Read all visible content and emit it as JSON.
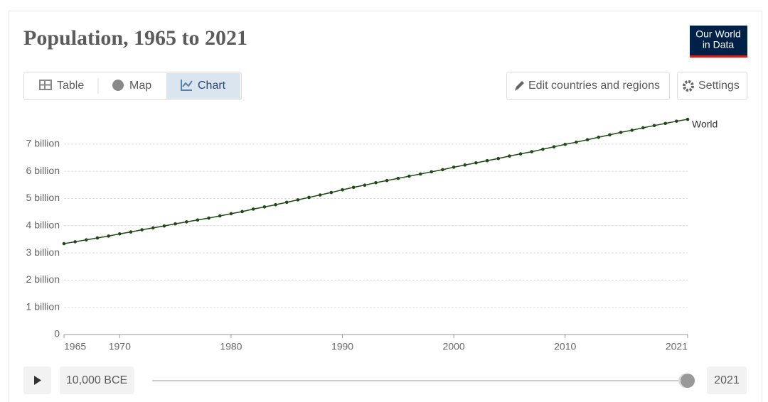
{
  "header": {
    "title": "Population, 1965 to 2021",
    "logo": [
      "Our World",
      "in Data"
    ]
  },
  "tabs": [
    "Table",
    "Map",
    "Chart"
  ],
  "buttons": {
    "edit": "Edit countries and regions",
    "settings": "Settings"
  },
  "timeline": {
    "start": "10,000 BCE",
    "end": "2021"
  },
  "chart_data": {
    "type": "line",
    "x": [
      1965,
      1966,
      1967,
      1968,
      1969,
      1970,
      1971,
      1972,
      1973,
      1974,
      1975,
      1976,
      1977,
      1978,
      1979,
      1980,
      1981,
      1982,
      1983,
      1984,
      1985,
      1986,
      1987,
      1988,
      1989,
      1990,
      1991,
      1992,
      1993,
      1994,
      1995,
      1996,
      1997,
      1998,
      1999,
      2000,
      2001,
      2002,
      2003,
      2004,
      2005,
      2006,
      2007,
      2008,
      2009,
      2010,
      2011,
      2012,
      2013,
      2014,
      2015,
      2016,
      2017,
      2018,
      2019,
      2020,
      2021
    ],
    "series": [
      {
        "name": "World",
        "color": "#1f4a16",
        "values": [
          3340000000,
          3410000000,
          3480000000,
          3550000000,
          3620000000,
          3700000000,
          3770000000,
          3850000000,
          3920000000,
          3990000000,
          4070000000,
          4140000000,
          4210000000,
          4280000000,
          4360000000,
          4440000000,
          4520000000,
          4610000000,
          4690000000,
          4770000000,
          4860000000,
          4950000000,
          5040000000,
          5130000000,
          5220000000,
          5320000000,
          5410000000,
          5490000000,
          5580000000,
          5660000000,
          5740000000,
          5820000000,
          5900000000,
          5980000000,
          6060000000,
          6150000000,
          6230000000,
          6310000000,
          6390000000,
          6470000000,
          6560000000,
          6640000000,
          6720000000,
          6810000000,
          6900000000,
          6990000000,
          7070000000,
          7160000000,
          7250000000,
          7340000000,
          7430000000,
          7510000000,
          7600000000,
          7680000000,
          7760000000,
          7840000000,
          7910000000
        ]
      }
    ],
    "xlim": [
      1965,
      2021
    ],
    "xticks": [
      1965,
      1970,
      1980,
      1990,
      2000,
      2010,
      2021
    ],
    "ylim": [
      0,
      7910000000
    ],
    "yticks": [
      0,
      {
        "value": 1000000000,
        "label": "1 billion"
      },
      {
        "value": 2000000000,
        "label": "2 billion"
      },
      {
        "value": 3000000000,
        "label": "3 billion"
      },
      {
        "value": 4000000000,
        "label": "4 billion"
      },
      {
        "value": 5000000000,
        "label": "5 billion"
      },
      {
        "value": 6000000000,
        "label": "6 billion"
      },
      {
        "value": 7000000000,
        "label": "7 billion"
      }
    ],
    "grid": true
  }
}
